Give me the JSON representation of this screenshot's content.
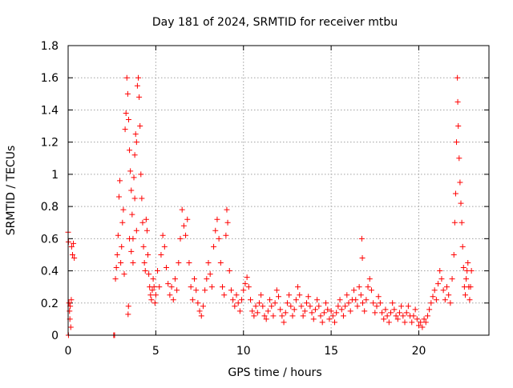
{
  "chart_data": {
    "type": "scatter",
    "title": "Day 181 of 2024, SRMTID for receiver mtbu",
    "xlabel": "GPS time / hours",
    "ylabel": "SRMTID / TECUs",
    "xlim": [
      0,
      24
    ],
    "ylim": [
      0,
      1.8
    ],
    "x_ticks": [
      0,
      5,
      10,
      15,
      20
    ],
    "y_ticks": [
      0,
      0.2,
      0.4,
      0.6,
      0.8,
      1,
      1.2,
      1.4,
      1.6,
      1.8
    ],
    "x_tick_labels": [
      "0",
      "5",
      "10",
      "15",
      "20"
    ],
    "y_tick_labels": [
      "0",
      "0.2",
      "0.4",
      "0.6",
      "0.8",
      "1",
      "1.2",
      "1.4",
      "1.6",
      "1.8"
    ],
    "grid": true,
    "marker": "+",
    "color": "#ff0000",
    "series": [
      {
        "name": "SRMTID",
        "points": [
          [
            0.0,
            0.64
          ],
          [
            0.02,
            0.58
          ],
          [
            0.05,
            0.2
          ],
          [
            0.08,
            0.15
          ],
          [
            0.1,
            0.1
          ],
          [
            0.12,
            0.18
          ],
          [
            0.15,
            0.05
          ],
          [
            0.18,
            0.22
          ],
          [
            0.2,
            0.55
          ],
          [
            0.25,
            0.5
          ],
          [
            0.3,
            0.57
          ],
          [
            0.35,
            0.48
          ],
          [
            0.02,
            0.0
          ],
          [
            2.6,
            0.0
          ],
          [
            2.65,
            0.0
          ],
          [
            2.7,
            0.35
          ],
          [
            2.75,
            0.42
          ],
          [
            2.8,
            0.5
          ],
          [
            2.85,
            0.62
          ],
          [
            2.9,
            0.86
          ],
          [
            2.95,
            0.96
          ],
          [
            3.0,
            0.45
          ],
          [
            3.05,
            0.55
          ],
          [
            3.1,
            0.7
          ],
          [
            3.15,
            0.78
          ],
          [
            3.2,
            0.38
          ],
          [
            3.25,
            1.28
          ],
          [
            3.3,
            1.38
          ],
          [
            3.35,
            1.6
          ],
          [
            3.4,
            1.5
          ],
          [
            3.45,
            1.34
          ],
          [
            3.5,
            1.15
          ],
          [
            3.55,
            1.02
          ],
          [
            3.6,
            0.9
          ],
          [
            3.65,
            0.75
          ],
          [
            3.7,
            0.6
          ],
          [
            3.75,
            0.98
          ],
          [
            3.8,
            1.12
          ],
          [
            3.85,
            1.25
          ],
          [
            3.9,
            1.2
          ],
          [
            3.95,
            1.55
          ],
          [
            4.0,
            1.6
          ],
          [
            4.05,
            1.48
          ],
          [
            4.1,
            1.3
          ],
          [
            4.15,
            1.0
          ],
          [
            4.2,
            0.85
          ],
          [
            4.25,
            0.7
          ],
          [
            4.3,
            0.55
          ],
          [
            4.35,
            0.45
          ],
          [
            4.4,
            0.4
          ],
          [
            3.42,
            0.13
          ],
          [
            3.44,
            0.18
          ],
          [
            3.5,
            0.6
          ],
          [
            3.6,
            0.52
          ],
          [
            3.7,
            0.45
          ],
          [
            3.8,
            0.85
          ],
          [
            3.9,
            0.65
          ],
          [
            4.45,
            0.72
          ],
          [
            4.5,
            0.65
          ],
          [
            4.55,
            0.5
          ],
          [
            4.6,
            0.38
          ],
          [
            4.65,
            0.3
          ],
          [
            4.7,
            0.25
          ],
          [
            4.75,
            0.22
          ],
          [
            4.8,
            0.28
          ],
          [
            4.85,
            0.35
          ],
          [
            4.9,
            0.3
          ],
          [
            4.95,
            0.2
          ],
          [
            5.0,
            0.25
          ],
          [
            5.1,
            0.4
          ],
          [
            5.2,
            0.3
          ],
          [
            5.3,
            0.5
          ],
          [
            5.4,
            0.62
          ],
          [
            5.5,
            0.55
          ],
          [
            5.6,
            0.42
          ],
          [
            5.7,
            0.32
          ],
          [
            5.8,
            0.25
          ],
          [
            5.9,
            0.3
          ],
          [
            6.0,
            0.22
          ],
          [
            6.1,
            0.35
          ],
          [
            6.2,
            0.28
          ],
          [
            6.3,
            0.45
          ],
          [
            6.4,
            0.6
          ],
          [
            6.5,
            0.78
          ],
          [
            6.6,
            0.68
          ],
          [
            6.7,
            0.62
          ],
          [
            6.8,
            0.72
          ],
          [
            6.9,
            0.45
          ],
          [
            7.0,
            0.3
          ],
          [
            7.1,
            0.22
          ],
          [
            7.2,
            0.35
          ],
          [
            7.3,
            0.28
          ],
          [
            7.4,
            0.2
          ],
          [
            7.5,
            0.15
          ],
          [
            7.6,
            0.12
          ],
          [
            7.7,
            0.18
          ],
          [
            7.8,
            0.28
          ],
          [
            7.9,
            0.35
          ],
          [
            8.0,
            0.45
          ],
          [
            8.1,
            0.38
          ],
          [
            8.2,
            0.3
          ],
          [
            8.3,
            0.55
          ],
          [
            8.4,
            0.65
          ],
          [
            8.5,
            0.72
          ],
          [
            8.6,
            0.6
          ],
          [
            8.7,
            0.45
          ],
          [
            8.8,
            0.3
          ],
          [
            8.9,
            0.25
          ],
          [
            9.0,
            0.62
          ],
          [
            9.05,
            0.78
          ],
          [
            9.1,
            0.7
          ],
          [
            9.2,
            0.4
          ],
          [
            9.3,
            0.28
          ],
          [
            9.4,
            0.22
          ],
          [
            9.5,
            0.18
          ],
          [
            9.6,
            0.25
          ],
          [
            9.7,
            0.2
          ],
          [
            9.8,
            0.15
          ],
          [
            9.9,
            0.22
          ],
          [
            10.0,
            0.28
          ],
          [
            10.1,
            0.32
          ],
          [
            10.2,
            0.36
          ],
          [
            10.3,
            0.3
          ],
          [
            10.4,
            0.22
          ],
          [
            10.5,
            0.15
          ],
          [
            10.6,
            0.12
          ],
          [
            10.7,
            0.18
          ],
          [
            10.8,
            0.14
          ],
          [
            10.9,
            0.2
          ],
          [
            11.0,
            0.25
          ],
          [
            11.1,
            0.18
          ],
          [
            11.2,
            0.12
          ],
          [
            11.3,
            0.1
          ],
          [
            11.4,
            0.15
          ],
          [
            11.5,
            0.22
          ],
          [
            11.6,
            0.18
          ],
          [
            11.7,
            0.12
          ],
          [
            11.8,
            0.2
          ],
          [
            11.9,
            0.28
          ],
          [
            12.0,
            0.24
          ],
          [
            12.1,
            0.16
          ],
          [
            12.2,
            0.12
          ],
          [
            12.3,
            0.08
          ],
          [
            12.4,
            0.14
          ],
          [
            12.5,
            0.2
          ],
          [
            12.6,
            0.25
          ],
          [
            12.7,
            0.18
          ],
          [
            12.8,
            0.12
          ],
          [
            12.9,
            0.16
          ],
          [
            13.0,
            0.22
          ],
          [
            13.1,
            0.3
          ],
          [
            13.2,
            0.25
          ],
          [
            13.3,
            0.18
          ],
          [
            13.4,
            0.12
          ],
          [
            13.5,
            0.15
          ],
          [
            13.6,
            0.2
          ],
          [
            13.7,
            0.24
          ],
          [
            13.8,
            0.18
          ],
          [
            13.9,
            0.14
          ],
          [
            14.0,
            0.1
          ],
          [
            14.1,
            0.16
          ],
          [
            14.2,
            0.22
          ],
          [
            14.3,
            0.18
          ],
          [
            14.4,
            0.12
          ],
          [
            14.5,
            0.08
          ],
          [
            14.6,
            0.14
          ],
          [
            14.7,
            0.2
          ],
          [
            14.8,
            0.16
          ],
          [
            14.9,
            0.1
          ],
          [
            15.0,
            0.15
          ],
          [
            15.1,
            0.12
          ],
          [
            15.2,
            0.08
          ],
          [
            15.3,
            0.14
          ],
          [
            15.4,
            0.18
          ],
          [
            15.5,
            0.22
          ],
          [
            15.6,
            0.16
          ],
          [
            15.7,
            0.12
          ],
          [
            15.8,
            0.18
          ],
          [
            15.9,
            0.25
          ],
          [
            16.0,
            0.2
          ],
          [
            16.1,
            0.15
          ],
          [
            16.2,
            0.22
          ],
          [
            16.3,
            0.28
          ],
          [
            16.4,
            0.22
          ],
          [
            16.5,
            0.18
          ],
          [
            16.6,
            0.3
          ],
          [
            16.7,
            0.25
          ],
          [
            16.75,
            0.6
          ],
          [
            16.78,
            0.48
          ],
          [
            16.8,
            0.2
          ],
          [
            16.9,
            0.15
          ],
          [
            17.0,
            0.22
          ],
          [
            17.1,
            0.3
          ],
          [
            17.2,
            0.35
          ],
          [
            17.3,
            0.28
          ],
          [
            17.4,
            0.2
          ],
          [
            17.5,
            0.14
          ],
          [
            17.6,
            0.18
          ],
          [
            17.7,
            0.24
          ],
          [
            17.8,
            0.2
          ],
          [
            17.9,
            0.14
          ],
          [
            18.0,
            0.1
          ],
          [
            18.1,
            0.16
          ],
          [
            18.2,
            0.12
          ],
          [
            18.3,
            0.08
          ],
          [
            18.4,
            0.14
          ],
          [
            18.5,
            0.2
          ],
          [
            18.6,
            0.16
          ],
          [
            18.7,
            0.12
          ],
          [
            18.8,
            0.1
          ],
          [
            18.9,
            0.14
          ],
          [
            19.0,
            0.18
          ],
          [
            19.1,
            0.12
          ],
          [
            19.2,
            0.08
          ],
          [
            19.3,
            0.14
          ],
          [
            19.4,
            0.18
          ],
          [
            19.5,
            0.12
          ],
          [
            19.6,
            0.08
          ],
          [
            19.7,
            0.12
          ],
          [
            19.8,
            0.16
          ],
          [
            19.9,
            0.1
          ],
          [
            20.0,
            0.06
          ],
          [
            20.1,
            0.08
          ],
          [
            20.2,
            0.05
          ],
          [
            20.3,
            0.1
          ],
          [
            20.4,
            0.08
          ],
          [
            20.5,
            0.12
          ],
          [
            20.6,
            0.16
          ],
          [
            20.7,
            0.2
          ],
          [
            20.8,
            0.24
          ],
          [
            20.9,
            0.28
          ],
          [
            21.0,
            0.22
          ],
          [
            21.1,
            0.32
          ],
          [
            21.2,
            0.4
          ],
          [
            21.3,
            0.35
          ],
          [
            21.4,
            0.28
          ],
          [
            21.5,
            0.22
          ],
          [
            21.6,
            0.3
          ],
          [
            21.7,
            0.25
          ],
          [
            21.8,
            0.2
          ],
          [
            21.9,
            0.35
          ],
          [
            22.0,
            0.5
          ],
          [
            22.05,
            0.7
          ],
          [
            22.1,
            0.88
          ],
          [
            22.15,
            1.2
          ],
          [
            22.2,
            1.6
          ],
          [
            22.22,
            1.45
          ],
          [
            22.25,
            1.3
          ],
          [
            22.3,
            1.1
          ],
          [
            22.35,
            0.95
          ],
          [
            22.4,
            0.82
          ],
          [
            22.45,
            0.7
          ],
          [
            22.5,
            0.55
          ],
          [
            22.55,
            0.42
          ],
          [
            22.6,
            0.3
          ],
          [
            22.65,
            0.25
          ],
          [
            22.7,
            0.35
          ],
          [
            22.75,
            0.4
          ],
          [
            22.8,
            0.45
          ],
          [
            22.85,
            0.3
          ],
          [
            22.9,
            0.22
          ],
          [
            22.95,
            0.3
          ],
          [
            23.0,
            0.4
          ]
        ]
      }
    ]
  }
}
